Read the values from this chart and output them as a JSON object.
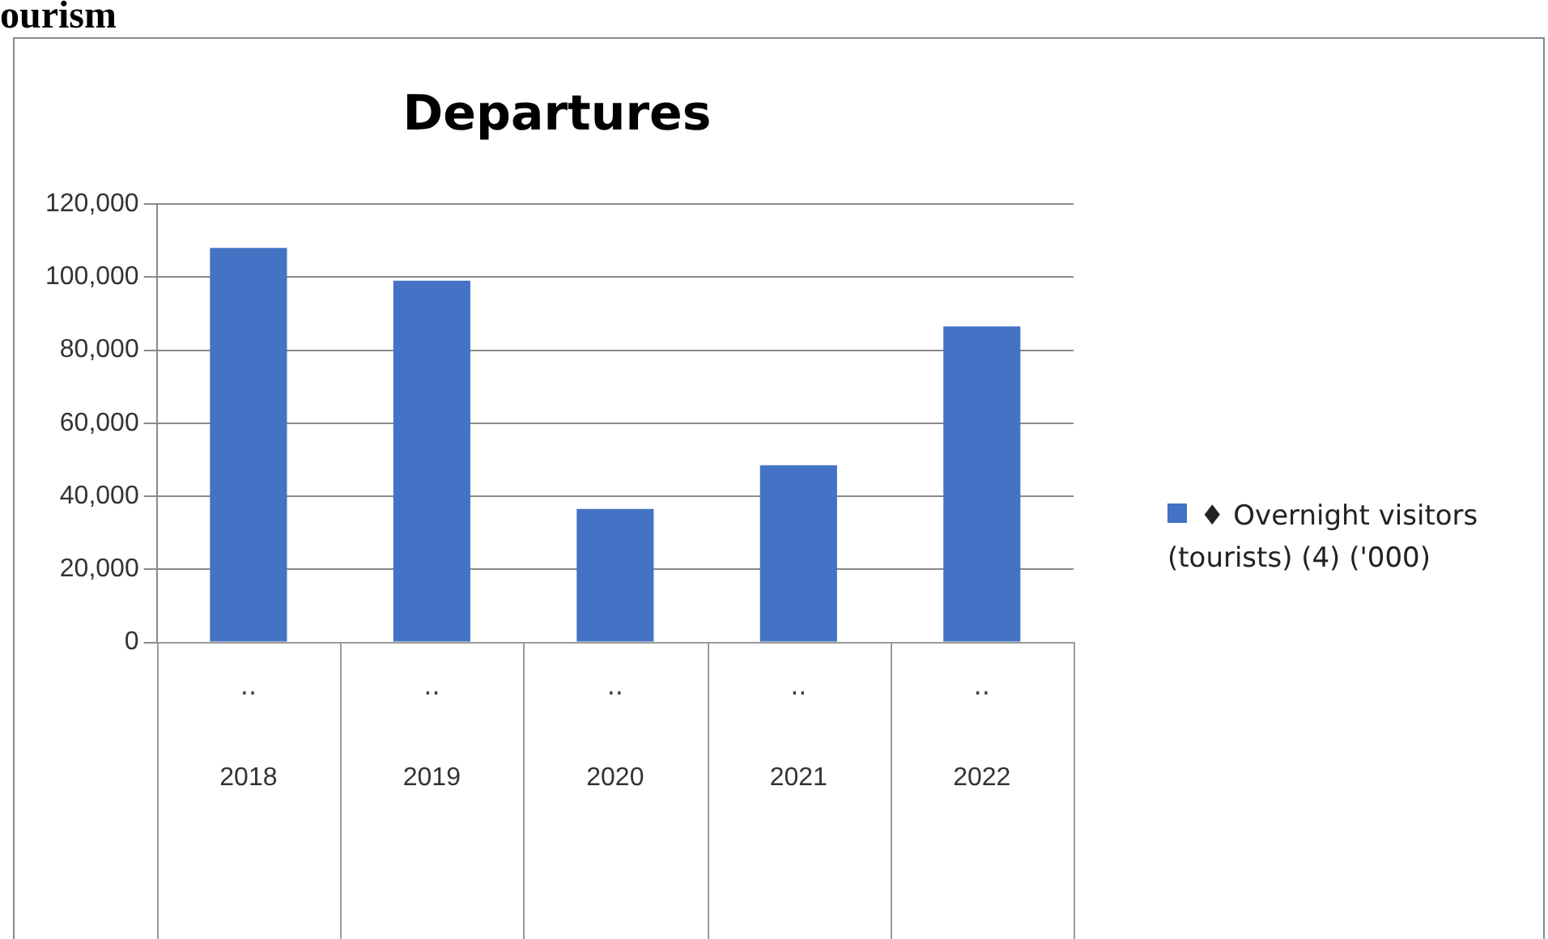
{
  "chart_data": {
    "type": "bar",
    "title": "Departures",
    "categories": [
      "2018",
      "2019",
      "2020",
      "2021",
      "2022"
    ],
    "series": [
      {
        "name": "♦ Overnight visitors (tourists) (4) ('000)",
        "color": "#4472c4",
        "values": [
          108000,
          99000,
          36500,
          48500,
          86500
        ]
      }
    ],
    "ylim": [
      0,
      120000
    ],
    "yticks": [
      {
        "value": 0,
        "label": "0"
      },
      {
        "value": 20000,
        "label": "20,000"
      },
      {
        "value": 40000,
        "label": "40,000"
      },
      {
        "value": 60000,
        "label": "60,000"
      },
      {
        "value": 80000,
        "label": "80,000"
      },
      {
        "value": 100000,
        "label": "100,000"
      },
      {
        "value": 120000,
        "label": "120,000"
      }
    ],
    "grid": "y",
    "legend": "right",
    "annotations": [
      "ourism",
      "..",
      "..",
      "..",
      "..",
      ".."
    ]
  }
}
